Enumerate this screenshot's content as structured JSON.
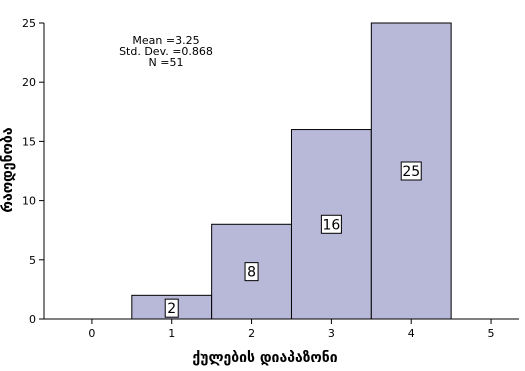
{
  "chart_data": {
    "type": "bar",
    "x_axis": {
      "label": "ქულების დიაპაზონი",
      "ticks": [
        0,
        1,
        2,
        3,
        4,
        5
      ],
      "range": [
        -0.6,
        5.35
      ]
    },
    "y_axis": {
      "label": "რაოდენობა",
      "ticks": [
        0,
        5,
        10,
        15,
        20,
        25
      ],
      "range": [
        0,
        25
      ]
    },
    "bins": [
      {
        "center": 1,
        "width": 1,
        "value": 2,
        "label": "2"
      },
      {
        "center": 2,
        "width": 1,
        "value": 8,
        "label": "8"
      },
      {
        "center": 3,
        "width": 1,
        "value": 16,
        "label": "16"
      },
      {
        "center": 4,
        "width": 1,
        "value": 25,
        "label": "25"
      }
    ],
    "stats": {
      "mean": "Mean =3.25",
      "std_dev": "Std. Dev. =0.868",
      "n": "N =51"
    },
    "bar_color": "#b8b8d8",
    "grid": false,
    "legend": "none"
  }
}
